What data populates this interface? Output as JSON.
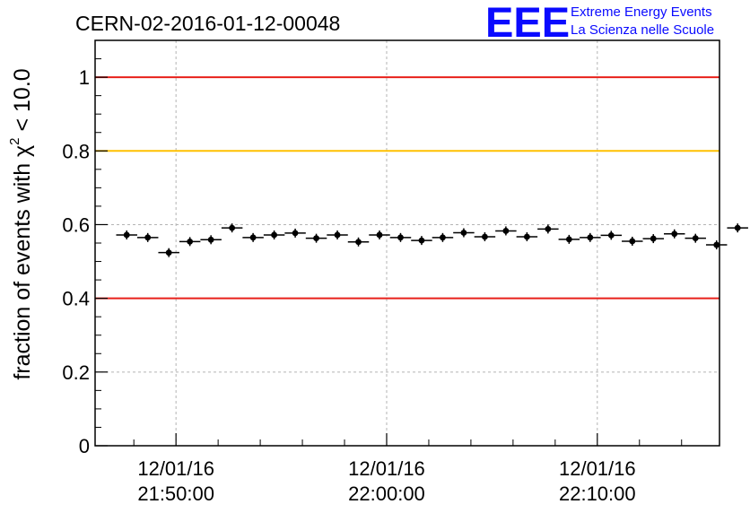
{
  "header": {
    "run_title": "CERN-02-2016-01-12-00048",
    "logo_text": "EEE",
    "logo_line1": "Extreme Energy Events",
    "logo_line2": "La Scienza nelle Scuole"
  },
  "colors": {
    "red_line": "#e8201a",
    "orange_line": "#ffc000",
    "logo_blue": "#0a0aff",
    "grid": "#b4b4b4",
    "marker": "#000000"
  },
  "chart_data": {
    "type": "scatter",
    "title": "CERN-02-2016-01-12-00048",
    "ylabel_main": "fraction of events with χ",
    "ylabel_sup": "2",
    "ylabel_tail": " < 10.0",
    "ylim": [
      0,
      1.1
    ],
    "yticks": [
      0,
      0.2,
      0.4,
      0.6,
      0.8,
      1
    ],
    "ytick_labels": [
      "0",
      "0.2",
      "0.4",
      "0.6",
      "0.8",
      "1"
    ],
    "xlim_minutes": [
      -3.84,
      25.8
    ],
    "xticks": [
      {
        "minutes": 0,
        "date": "12/01/16",
        "time": "21:50:00"
      },
      {
        "minutes": 10,
        "date": "12/01/16",
        "time": "22:00:00"
      },
      {
        "minutes": 20,
        "date": "12/01/16",
        "time": "22:10:00"
      }
    ],
    "bin_width_minutes": 1,
    "bin_start_minutes": -2.34,
    "values": [
      0.572,
      0.565,
      0.524,
      0.554,
      0.559,
      0.591,
      0.565,
      0.572,
      0.577,
      0.563,
      0.572,
      0.553,
      0.572,
      0.565,
      0.557,
      0.565,
      0.578,
      0.567,
      0.583,
      0.567,
      0.588,
      0.56,
      0.565,
      0.571,
      0.555,
      0.562,
      0.575,
      0.563,
      0.545,
      0.591
    ],
    "reference_lines": [
      {
        "y": 1.0,
        "color": "#e8201a"
      },
      {
        "y": 0.8,
        "color": "#ffc000"
      },
      {
        "y": 0.4,
        "color": "#e8201a"
      }
    ],
    "grid": true
  }
}
